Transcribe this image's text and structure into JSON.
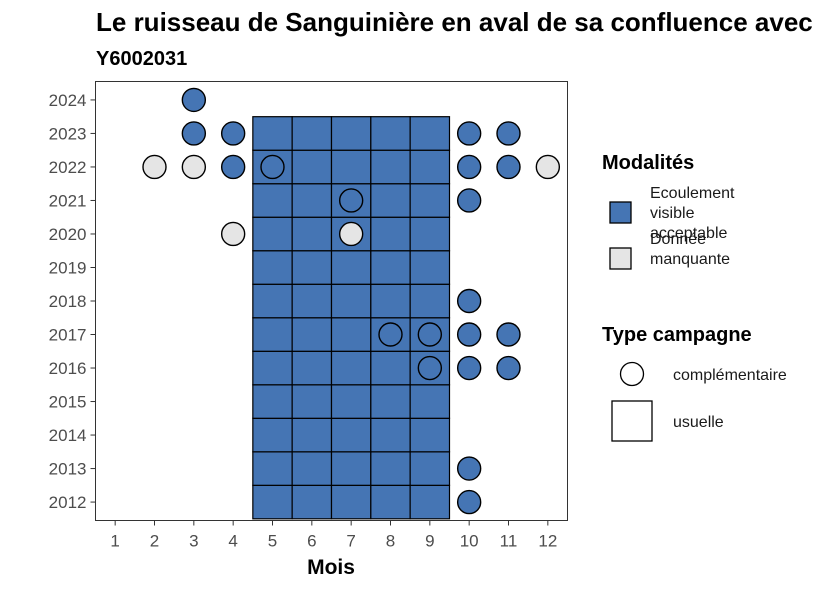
{
  "chart_data": {
    "type": "heatmap",
    "title": "Le ruisseau de Sanguinière en aval de sa confluence avec",
    "subtitle": "Y6002031",
    "xlabel": "Mois",
    "ylabel": "",
    "x_ticks": [
      1,
      2,
      3,
      4,
      5,
      6,
      7,
      8,
      9,
      10,
      11,
      12
    ],
    "y_ticks": [
      2012,
      2013,
      2014,
      2015,
      2016,
      2017,
      2018,
      2019,
      2020,
      2021,
      2022,
      2023,
      2024
    ],
    "xlim": [
      0.5,
      12.5
    ],
    "ylim": [
      2011.45,
      2024.55
    ],
    "colors": {
      "Ecoulement visible acceptable": "#4575b4",
      "Donnée manquante": "#e5e5e5"
    },
    "usual_campaign": {
      "months": [
        5,
        6,
        7,
        8,
        9
      ],
      "years": [
        2012,
        2013,
        2014,
        2015,
        2016,
        2017,
        2018,
        2019,
        2020,
        2021,
        2022,
        2023
      ],
      "modalite": "Ecoulement visible acceptable"
    },
    "complementary_points": [
      {
        "month": 3,
        "year": 2024,
        "modalite": "Ecoulement visible acceptable"
      },
      {
        "month": 3,
        "year": 2023,
        "modalite": "Ecoulement visible acceptable"
      },
      {
        "month": 4,
        "year": 2023,
        "modalite": "Ecoulement visible acceptable"
      },
      {
        "month": 10,
        "year": 2023,
        "modalite": "Ecoulement visible acceptable"
      },
      {
        "month": 11,
        "year": 2023,
        "modalite": "Ecoulement visible acceptable"
      },
      {
        "month": 2,
        "year": 2022,
        "modalite": "Donnée manquante"
      },
      {
        "month": 3,
        "year": 2022,
        "modalite": "Donnée manquante"
      },
      {
        "month": 4,
        "year": 2022,
        "modalite": "Ecoulement visible acceptable"
      },
      {
        "month": 5,
        "year": 2022,
        "modalite": "Ecoulement visible acceptable"
      },
      {
        "month": 10,
        "year": 2022,
        "modalite": "Ecoulement visible acceptable"
      },
      {
        "month": 11,
        "year": 2022,
        "modalite": "Ecoulement visible acceptable"
      },
      {
        "month": 12,
        "year": 2022,
        "modalite": "Donnée manquante"
      },
      {
        "month": 7,
        "year": 2021,
        "modalite": "Ecoulement visible acceptable"
      },
      {
        "month": 10,
        "year": 2021,
        "modalite": "Ecoulement visible acceptable"
      },
      {
        "month": 4,
        "year": 2020,
        "modalite": "Donnée manquante"
      },
      {
        "month": 7,
        "year": 2020,
        "modalite": "Donnée manquante"
      },
      {
        "month": 10,
        "year": 2018,
        "modalite": "Ecoulement visible acceptable"
      },
      {
        "month": 8,
        "year": 2017,
        "modalite": "Ecoulement visible acceptable"
      },
      {
        "month": 9,
        "year": 2017,
        "modalite": "Ecoulement visible acceptable"
      },
      {
        "month": 10,
        "year": 2017,
        "modalite": "Ecoulement visible acceptable"
      },
      {
        "month": 11,
        "year": 2017,
        "modalite": "Ecoulement visible acceptable"
      },
      {
        "month": 9,
        "year": 2016,
        "modalite": "Ecoulement visible acceptable"
      },
      {
        "month": 10,
        "year": 2016,
        "modalite": "Ecoulement visible acceptable"
      },
      {
        "month": 11,
        "year": 2016,
        "modalite": "Ecoulement visible acceptable"
      },
      {
        "month": 10,
        "year": 2013,
        "modalite": "Ecoulement visible acceptable"
      },
      {
        "month": 10,
        "year": 2012,
        "modalite": "Ecoulement visible acceptable"
      }
    ],
    "legend": {
      "placement": "right",
      "modalites_title": "Modalités",
      "modalites": [
        {
          "label_lines": [
            "Ecoulement",
            "visible",
            "acceptable"
          ],
          "color": "#4575b4"
        },
        {
          "label_lines": [
            "Donnée",
            "manquante"
          ],
          "color": "#e5e5e5"
        }
      ],
      "type_title": "Type campagne",
      "types": [
        {
          "label": "complémentaire",
          "shape": "circle"
        },
        {
          "label": "usuelle",
          "shape": "square"
        }
      ]
    },
    "grid": false
  }
}
